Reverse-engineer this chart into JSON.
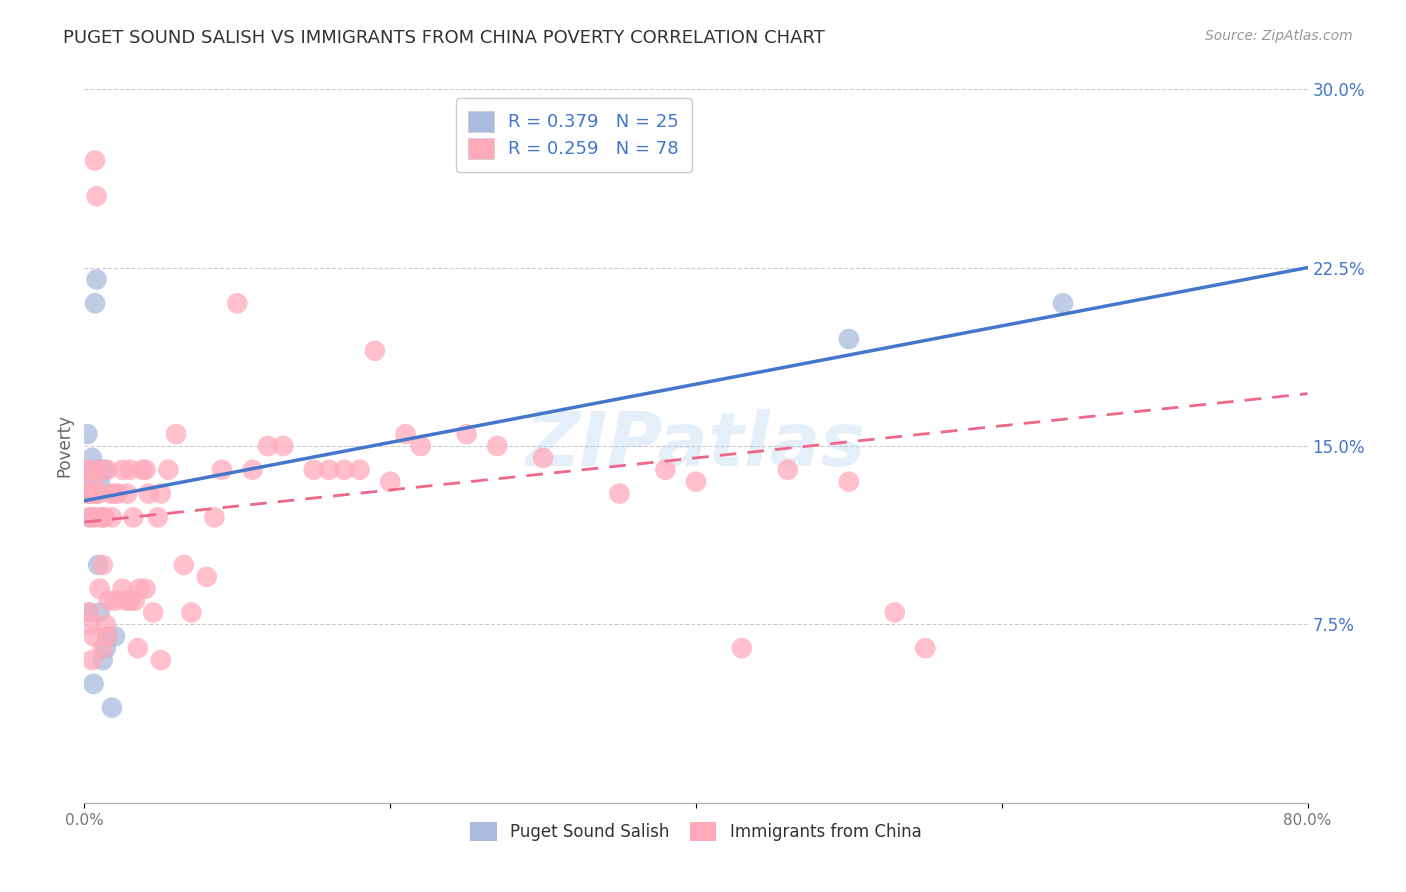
{
  "title": "PUGET SOUND SALISH VS IMMIGRANTS FROM CHINA POVERTY CORRELATION CHART",
  "source": "Source: ZipAtlas.com",
  "ylabel": "Poverty",
  "xlim": [
    0,
    0.8
  ],
  "ylim": [
    0,
    0.3
  ],
  "xticks": [
    0.0,
    0.2,
    0.4,
    0.6,
    0.8
  ],
  "xtick_labels": [
    "0.0%",
    "",
    "",
    "",
    "80.0%"
  ],
  "ytick_labels_right": [
    "30.0%",
    "22.5%",
    "15.0%",
    "7.5%",
    ""
  ],
  "yticks_right": [
    0.3,
    0.225,
    0.15,
    0.075,
    0.0
  ],
  "legend1_text": "R = 0.379   N = 25",
  "legend2_text": "R = 0.259   N = 78",
  "watermark": "ZIPatlas",
  "blue_color": "#AABBDD",
  "pink_color": "#FFAABB",
  "blue_line_color": "#4477CC",
  "pink_line_color": "#EE6688",
  "text_color": "#4477CC",
  "blue_scatter": {
    "x": [
      0.001,
      0.002,
      0.003,
      0.004,
      0.004,
      0.005,
      0.006,
      0.006,
      0.007,
      0.007,
      0.008,
      0.009,
      0.009,
      0.01,
      0.01,
      0.011,
      0.012,
      0.012,
      0.013,
      0.014,
      0.015,
      0.018,
      0.02,
      0.5,
      0.64
    ],
    "y": [
      0.135,
      0.155,
      0.08,
      0.13,
      0.12,
      0.145,
      0.14,
      0.05,
      0.13,
      0.21,
      0.22,
      0.14,
      0.1,
      0.135,
      0.08,
      0.14,
      0.12,
      0.06,
      0.14,
      0.065,
      0.07,
      0.04,
      0.07,
      0.195,
      0.21
    ]
  },
  "pink_scatter": {
    "x": [
      0.001,
      0.002,
      0.003,
      0.003,
      0.004,
      0.004,
      0.005,
      0.005,
      0.006,
      0.006,
      0.007,
      0.007,
      0.008,
      0.008,
      0.009,
      0.01,
      0.01,
      0.011,
      0.012,
      0.012,
      0.013,
      0.014,
      0.015,
      0.015,
      0.016,
      0.017,
      0.018,
      0.02,
      0.02,
      0.022,
      0.025,
      0.025,
      0.027,
      0.028,
      0.03,
      0.03,
      0.032,
      0.033,
      0.035,
      0.036,
      0.038,
      0.04,
      0.04,
      0.042,
      0.045,
      0.048,
      0.05,
      0.055,
      0.06,
      0.065,
      0.07,
      0.08,
      0.085,
      0.09,
      0.1,
      0.11,
      0.12,
      0.13,
      0.15,
      0.16,
      0.17,
      0.18,
      0.19,
      0.2,
      0.21,
      0.22,
      0.25,
      0.27,
      0.3,
      0.35,
      0.38,
      0.4,
      0.43,
      0.46,
      0.5,
      0.53,
      0.55,
      0.05
    ],
    "y": [
      0.14,
      0.13,
      0.12,
      0.08,
      0.14,
      0.075,
      0.13,
      0.06,
      0.135,
      0.07,
      0.27,
      0.12,
      0.255,
      0.13,
      0.13,
      0.14,
      0.09,
      0.12,
      0.1,
      0.065,
      0.12,
      0.075,
      0.14,
      0.07,
      0.085,
      0.13,
      0.12,
      0.13,
      0.085,
      0.13,
      0.14,
      0.09,
      0.085,
      0.13,
      0.14,
      0.085,
      0.12,
      0.085,
      0.065,
      0.09,
      0.14,
      0.09,
      0.14,
      0.13,
      0.08,
      0.12,
      0.13,
      0.14,
      0.155,
      0.1,
      0.08,
      0.095,
      0.12,
      0.14,
      0.21,
      0.14,
      0.15,
      0.15,
      0.14,
      0.14,
      0.14,
      0.14,
      0.19,
      0.135,
      0.155,
      0.15,
      0.155,
      0.15,
      0.145,
      0.13,
      0.14,
      0.135,
      0.065,
      0.14,
      0.135,
      0.08,
      0.065,
      0.06
    ]
  },
  "blue_line": {
    "x0": 0.0,
    "y0": 0.127,
    "x1": 0.8,
    "y1": 0.225
  },
  "pink_line": {
    "x0": 0.0,
    "y0": 0.118,
    "x1": 0.8,
    "y1": 0.172
  }
}
